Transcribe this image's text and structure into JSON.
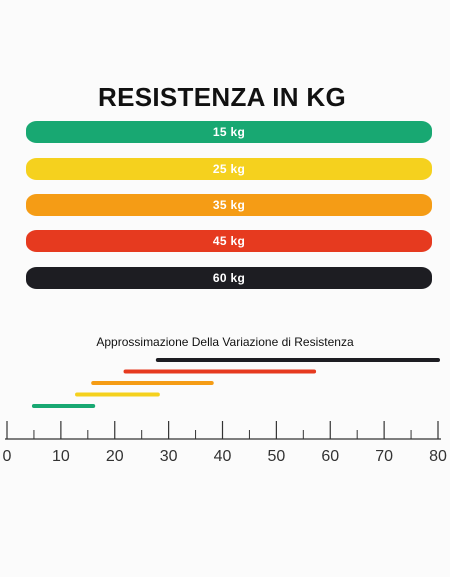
{
  "header": {
    "title": "RESISTENZA IN KG"
  },
  "bands": [
    {
      "label": "15 kg",
      "color": "#18a872"
    },
    {
      "label": "25 kg",
      "color": "#f5d11e"
    },
    {
      "label": "35 kg",
      "color": "#f59c15"
    },
    {
      "label": "45 kg",
      "color": "#e63a1f"
    },
    {
      "label": "60 kg",
      "color": "#1d1d22"
    }
  ],
  "chart_data": {
    "type": "range-bar",
    "title": "Approssimazione Della Variazione di Resistenza",
    "xlabel": "",
    "ylabel": "",
    "xlim": [
      0,
      80
    ],
    "major_ticks": [
      0,
      10,
      20,
      30,
      40,
      50,
      60,
      70,
      80
    ],
    "tick_labels": [
      "0",
      "10",
      "20",
      "30",
      "40",
      "50",
      "60",
      "70",
      "80"
    ],
    "series": [
      {
        "name": "15 kg",
        "start": 5,
        "end": 16,
        "color": "#18a872"
      },
      {
        "name": "25 kg",
        "start": 13,
        "end": 28,
        "color": "#f5d11e"
      },
      {
        "name": "35 kg",
        "start": 16,
        "end": 38,
        "color": "#f59c15"
      },
      {
        "name": "45 kg",
        "start": 22,
        "end": 57,
        "color": "#e63a1f"
      },
      {
        "name": "60 kg",
        "start": 28,
        "end": 80,
        "color": "#1d1d22"
      }
    ]
  }
}
